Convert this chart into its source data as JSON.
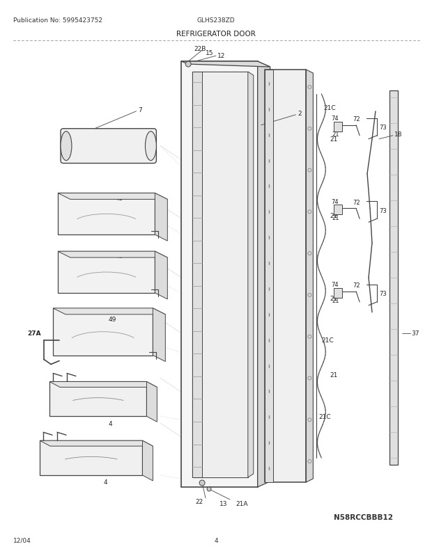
{
  "title": "REFRIGERATOR DOOR",
  "pub_no": "Publication No: 5995423752",
  "model": "GLHS238ZD",
  "part_no": "N58RCCBBB12",
  "date": "12/04",
  "page": "4",
  "bg_color": "#ffffff",
  "lc": "#444444",
  "label_color": "#222222"
}
